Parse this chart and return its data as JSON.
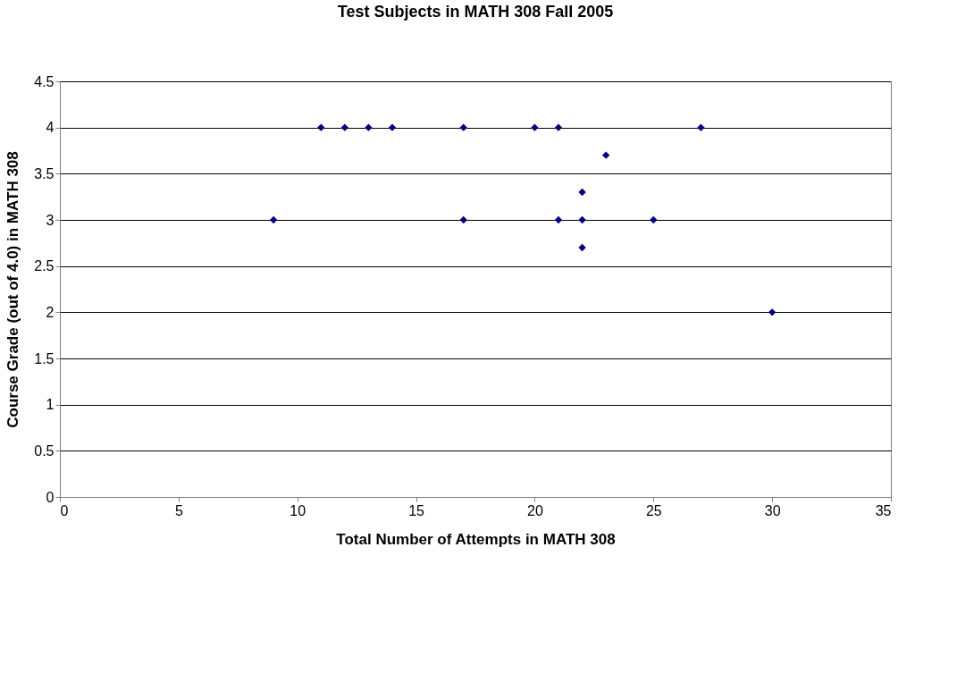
{
  "chart_data": {
    "type": "scatter",
    "title": "Test Subjects in MATH 308 Fall 2005",
    "xlabel": "Total Number of Attempts in MATH 308",
    "ylabel": "Course Grade (out of 4.0) in MATH 308",
    "x": [
      9,
      11,
      12,
      13,
      14,
      17,
      17,
      20,
      21,
      21,
      22,
      22,
      22,
      23,
      25,
      27,
      30
    ],
    "series": [
      {
        "color": "#000080",
        "values": [
          3,
          4,
          4,
          4,
          4,
          4,
          3,
          4,
          4,
          3,
          3.3,
          3,
          2.7,
          3.7,
          3,
          4,
          2
        ]
      }
    ],
    "xlim": [
      0,
      35
    ],
    "xticks": [
      0,
      5,
      10,
      15,
      20,
      25,
      30,
      35
    ],
    "ylim": [
      0,
      4.5
    ],
    "yticks": [
      0,
      0.5,
      1,
      1.5,
      2,
      2.5,
      3,
      3.5,
      4,
      4.5
    ],
    "grid": "y",
    "marker": "diamond",
    "legend": false
  }
}
